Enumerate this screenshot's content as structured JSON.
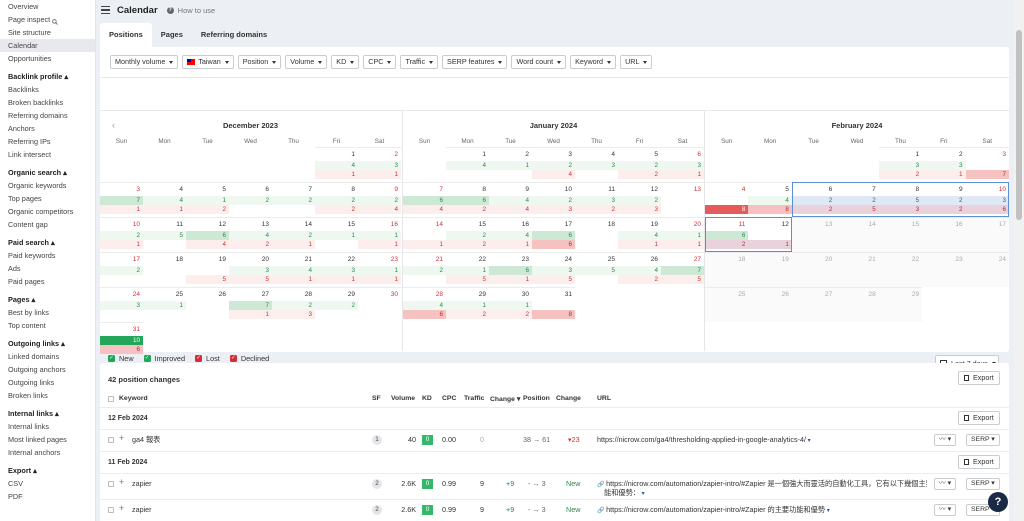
{
  "sidebar": {
    "groups": [
      {
        "title": "",
        "items": [
          "Overview",
          "Page inspect",
          "Site structure",
          "Calendar",
          "Opportunities"
        ]
      },
      {
        "title": "Backlink profile ▴",
        "items": [
          "Backlinks",
          "Broken backlinks",
          "Referring domains",
          "Anchors",
          "Referring IPs",
          "Link intersect"
        ]
      },
      {
        "title": "Organic search ▴",
        "items": [
          "Organic keywords",
          "Top pages",
          "Organic competitors",
          "Content gap"
        ]
      },
      {
        "title": "Paid search ▴",
        "items": [
          "Paid keywords",
          "Ads",
          "Paid pages"
        ]
      },
      {
        "title": "Pages ▴",
        "items": [
          "Best by links",
          "Top content"
        ]
      },
      {
        "title": "Outgoing links ▴",
        "items": [
          "Linked domains",
          "Outgoing anchors",
          "Outgoing links",
          "Broken links"
        ]
      },
      {
        "title": "Internal links ▴",
        "items": [
          "Internal links",
          "Most linked pages",
          "Internal anchors"
        ]
      },
      {
        "title": "Export ▴",
        "items": [
          "CSV",
          "PDF"
        ]
      }
    ],
    "active": "Calendar"
  },
  "header": {
    "title": "Calendar",
    "howto": "How to use"
  },
  "tabs": [
    {
      "label": "Positions",
      "active": true
    },
    {
      "label": "Pages"
    },
    {
      "label": "Referring domains"
    }
  ],
  "filters": [
    {
      "label": "Monthly volume"
    },
    {
      "label": "Taiwan",
      "flag": true
    },
    {
      "label": "Position"
    },
    {
      "label": "Volume"
    },
    {
      "label": "KD"
    },
    {
      "label": "CPC"
    },
    {
      "label": "Traffic"
    },
    {
      "label": "SERP features"
    },
    {
      "label": "Word count"
    },
    {
      "label": "Keyword"
    },
    {
      "label": "URL"
    }
  ],
  "weekdays": [
    "Sun",
    "Mon",
    "Tue",
    "Wed",
    "Thu",
    "Fri",
    "Sat"
  ],
  "months": [
    {
      "title": "December 2023",
      "offset": 5,
      "days": 31,
      "nav": "‹",
      "data": {
        "1": [
          [
            "lg",
            "4"
          ],
          [
            "lr",
            "1"
          ]
        ],
        "2": [
          [
            "lg",
            "3"
          ],
          [
            "lr",
            "1"
          ]
        ],
        "3": [
          [
            "g2",
            "7"
          ],
          [
            "lr",
            "1"
          ]
        ],
        "4": [
          [
            "lg",
            "4"
          ],
          [
            "lr",
            "1"
          ]
        ],
        "5": [
          [
            "lg",
            "1"
          ],
          [
            "lr",
            "2"
          ]
        ],
        "6": [
          [
            "lg",
            "2"
          ],
          []
        ],
        "7": [
          [
            "lg",
            "2"
          ],
          []
        ],
        "8": [
          [
            "lg",
            "2"
          ],
          [
            "lr",
            "2"
          ]
        ],
        "9": [
          [
            "lg",
            "2"
          ],
          [
            "lr",
            "4"
          ]
        ],
        "10": [
          [
            "lg",
            "2"
          ],
          [
            "lr",
            "1"
          ]
        ],
        "11": [
          [
            "lg",
            "5"
          ],
          []
        ],
        "12": [
          [
            "g2",
            "6"
          ],
          [
            "lr",
            "4"
          ]
        ],
        "13": [
          [
            "lg",
            "4"
          ],
          [
            "lr",
            "2"
          ]
        ],
        "14": [
          [
            "lg",
            "2"
          ],
          [
            "lr",
            "1"
          ]
        ],
        "15": [
          [
            "lg",
            "1"
          ],
          []
        ],
        "16": [
          [
            "lg",
            "1"
          ],
          [
            "lr",
            "1"
          ]
        ],
        "17": [
          [
            "lg",
            "2"
          ],
          []
        ],
        "18": [
          [],
          []
        ],
        "19": [
          [],
          [
            "lr",
            "5"
          ]
        ],
        "20": [
          [
            "lg",
            "3"
          ],
          [
            "lr",
            "5"
          ]
        ],
        "21": [
          [
            "lg",
            "4"
          ],
          [
            "lr",
            "1"
          ]
        ],
        "22": [
          [
            "lg",
            "3"
          ],
          [
            "lr",
            "1"
          ]
        ],
        "23": [
          [
            "lg",
            "1"
          ],
          [
            "lr",
            "1"
          ]
        ],
        "24": [
          [
            "lg",
            "3"
          ],
          []
        ],
        "25": [
          [
            "lg",
            "1"
          ],
          []
        ],
        "26": [
          [],
          []
        ],
        "27": [
          [
            "g2",
            "7"
          ],
          [
            "lr",
            "1"
          ]
        ],
        "28": [
          [
            "lg",
            "2"
          ],
          [
            "lr",
            "3"
          ]
        ],
        "29": [
          [
            "lg",
            "2"
          ],
          []
        ],
        "30": [
          [],
          []
        ],
        "31": [
          [
            "g3",
            "10"
          ],
          [
            "r2",
            "6"
          ]
        ]
      }
    },
    {
      "title": "January 2024",
      "offset": 1,
      "days": 31,
      "data": {
        "1": [
          [
            "lg",
            "4"
          ],
          []
        ],
        "2": [
          [
            "lg",
            "1"
          ],
          []
        ],
        "3": [
          [
            "lg",
            "2"
          ],
          [
            "lr",
            "4"
          ]
        ],
        "4": [
          [
            "lg",
            "3"
          ],
          []
        ],
        "5": [
          [
            "lg",
            "2"
          ],
          [
            "lr",
            "2"
          ]
        ],
        "6": [
          [
            "lg",
            "3"
          ],
          [
            "lr",
            "1"
          ]
        ],
        "7": [
          [
            "g2",
            "6"
          ],
          [
            "lr",
            "4"
          ]
        ],
        "8": [
          [
            "g2",
            "6"
          ],
          [
            "lr",
            "2"
          ]
        ],
        "9": [
          [
            "lg",
            "4"
          ],
          [
            "lr",
            "4"
          ]
        ],
        "10": [
          [
            "lg",
            "2"
          ],
          [
            "lr",
            "3"
          ]
        ],
        "11": [
          [
            "lg",
            "3"
          ],
          [
            "lr",
            "2"
          ]
        ],
        "12": [
          [
            "lg",
            "2"
          ],
          [
            "lr",
            "3"
          ]
        ],
        "13": [
          [],
          []
        ],
        "14": [
          [],
          [
            "lr",
            "1"
          ]
        ],
        "15": [
          [
            "lg",
            "2"
          ],
          [
            "lr",
            "2"
          ]
        ],
        "16": [
          [
            "lg",
            "4"
          ],
          [
            "lr",
            "1"
          ]
        ],
        "17": [
          [
            "g2",
            "6"
          ],
          [
            "r2",
            "6"
          ]
        ],
        "18": [
          [],
          []
        ],
        "19": [
          [
            "lg",
            "4"
          ],
          [
            "lr",
            "1"
          ]
        ],
        "20": [
          [
            "lg",
            "1"
          ],
          [
            "lr",
            "1"
          ]
        ],
        "21": [
          [
            "lg",
            "2"
          ],
          []
        ],
        "22": [
          [
            "lg",
            "1"
          ],
          [
            "lr",
            "5"
          ]
        ],
        "23": [
          [
            "g2",
            "6"
          ],
          [
            "lr",
            "1"
          ]
        ],
        "24": [
          [
            "lg",
            "3"
          ],
          [
            "lr",
            "5"
          ]
        ],
        "25": [
          [
            "lg",
            "5"
          ],
          []
        ],
        "26": [
          [
            "lg",
            "4"
          ],
          [
            "lr",
            "2"
          ]
        ],
        "27": [
          [
            "g2",
            "7"
          ],
          [
            "lr",
            "5"
          ]
        ],
        "28": [
          [
            "lg",
            "4"
          ],
          [
            "r2",
            "6"
          ]
        ],
        "29": [
          [
            "lg",
            "1"
          ],
          [
            "lr",
            "2"
          ]
        ],
        "30": [
          [
            "lg",
            "1"
          ],
          [
            "lr",
            "2"
          ]
        ],
        "31": [
          [],
          [
            "r2",
            "8"
          ]
        ]
      }
    },
    {
      "title": "February 2024",
      "offset": 4,
      "days": 29,
      "data": {
        "1": [
          [
            "lg",
            "3"
          ],
          [
            "lr",
            "2"
          ]
        ],
        "2": [
          [
            "lg",
            "3"
          ],
          [
            "lr",
            "1"
          ]
        ],
        "3": [
          [],
          [
            "r2",
            "7"
          ]
        ],
        "4": [
          [],
          [
            "r3",
            "8"
          ]
        ],
        "5": [
          [
            "lg",
            "4"
          ],
          [
            "r2",
            "8"
          ]
        ],
        "6": [
          [
            "bl",
            "2"
          ],
          [
            "blr",
            "2"
          ]
        ],
        "7": [
          [
            "bl",
            "2"
          ],
          [
            "blr",
            "5"
          ]
        ],
        "8": [
          [
            "bl",
            "5"
          ],
          [
            "blr",
            "3"
          ]
        ],
        "9": [
          [
            "bl",
            "2"
          ],
          [
            "blr",
            "2"
          ]
        ],
        "10": [
          [
            "bl",
            "3"
          ],
          [
            "blr",
            "6"
          ]
        ],
        "11": [
          [
            "g2",
            "6"
          ],
          [
            "blr",
            "2"
          ]
        ],
        "12": [
          [],
          [
            "blr",
            "1"
          ]
        ]
      },
      "lastday": 12
    }
  ],
  "legend": [
    {
      "label": "New",
      "color": "#23a55a"
    },
    {
      "label": "Improved",
      "color": "#23a55a"
    },
    {
      "label": "Lost",
      "color": "#d1303a"
    },
    {
      "label": "Declined",
      "color": "#d1303a"
    }
  ],
  "range": "Last 7 days",
  "list": {
    "count": "42 position changes",
    "export": "Export",
    "headers": {
      "keyword": "Keyword",
      "sf": "SF",
      "volume": "Volume",
      "kd": "KD",
      "cpc": "CPC",
      "traffic": "Traffic",
      "change": "Change ▾",
      "position": "Position",
      "change2": "Change",
      "url": "URL"
    },
    "groups": [
      {
        "date": "12 Feb 2024",
        "rows": [
          {
            "keyword": "ga4 報表",
            "sf": "1",
            "volume": "40",
            "kd": "0",
            "cpc": "0.00",
            "traffic": "0",
            "tchange": "",
            "position": "38 → 61",
            "change": "▾23",
            "url": "https://nicrow.com/ga4/thresholding-applied-in-google-analytics-4/",
            "url2": "",
            "ctype": "down"
          }
        ]
      },
      {
        "date": "11 Feb 2024",
        "rows": [
          {
            "keyword": "zapier",
            "sf": "2",
            "volume": "2.6K",
            "kd": "0",
            "cpc": "0.99",
            "traffic": "9",
            "tchange": "+9",
            "position": "- → 3",
            "change": "New",
            "url": "https://nicrow.com/automation/zapier-intro/#Zapier 是一個強大而靈活的自動化工具，它有以下幾個主要功",
            "url2": "能和優勢：",
            "ctype": "new"
          },
          {
            "keyword": "zapier",
            "sf": "2",
            "volume": "2.6K",
            "kd": "0",
            "cpc": "0.99",
            "traffic": "9",
            "tchange": "+9",
            "position": "- → 3",
            "change": "New",
            "url": "https://nicrow.com/automation/zapier-intro/#Zapier 的主要功能和優勢",
            "url2": "",
            "ctype": "new"
          }
        ]
      }
    ],
    "serp": "SERP"
  }
}
